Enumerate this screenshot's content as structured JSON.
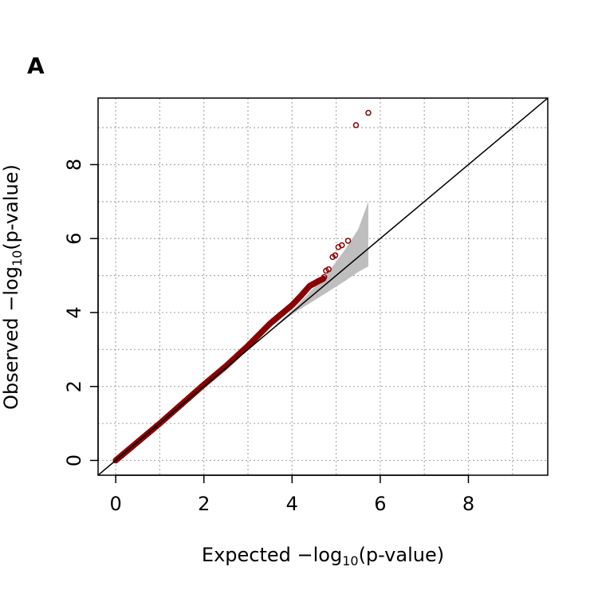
{
  "panel_label": "A",
  "colors": {
    "points": "#8b0000",
    "band": "#bebebe",
    "grid": "#a9a9a9",
    "axis": "#000000"
  },
  "chart_data": {
    "type": "scatter",
    "title": "",
    "xlabel": {
      "prefix": "Expected −log",
      "sub": "10",
      "suffix": "(p-value)"
    },
    "ylabel": {
      "prefix": "Observed −log",
      "sub": "10",
      "suffix": "(p-value)"
    },
    "xlim": [
      -0.4,
      9.8
    ],
    "ylim": [
      -0.4,
      9.8
    ],
    "xticks": [
      0,
      2,
      4,
      6,
      8
    ],
    "yticks": [
      0,
      2,
      4,
      6,
      8
    ],
    "grid": true,
    "reference_line": {
      "slope": 1,
      "intercept": 0
    },
    "confidence_band": {
      "upper": [
        [
          3.6,
          3.62
        ],
        [
          4.0,
          4.05
        ],
        [
          4.4,
          4.55
        ],
        [
          4.8,
          5.05
        ],
        [
          5.2,
          5.7
        ],
        [
          5.5,
          6.25
        ],
        [
          5.73,
          7.0
        ]
      ],
      "lower": [
        [
          3.6,
          3.58
        ],
        [
          4.0,
          3.95
        ],
        [
          4.4,
          4.25
        ],
        [
          4.8,
          4.55
        ],
        [
          5.2,
          4.85
        ],
        [
          5.5,
          5.1
        ],
        [
          5.73,
          5.25
        ]
      ]
    },
    "series": [
      {
        "dense_trend": [
          [
            0.0,
            0.0
          ],
          [
            1.0,
            1.0
          ],
          [
            2.0,
            2.05
          ],
          [
            2.5,
            2.55
          ],
          [
            3.0,
            3.1
          ],
          [
            3.5,
            3.7
          ],
          [
            3.8,
            4.0
          ],
          [
            4.0,
            4.2
          ],
          [
            4.2,
            4.45
          ],
          [
            4.4,
            4.72
          ],
          [
            4.6,
            4.85
          ],
          [
            4.72,
            4.92
          ]
        ],
        "outliers": [
          [
            4.73,
            4.96
          ],
          [
            4.77,
            5.13
          ],
          [
            4.83,
            5.17
          ],
          [
            4.92,
            5.5
          ],
          [
            4.98,
            5.55
          ],
          [
            5.05,
            5.77
          ],
          [
            5.13,
            5.82
          ],
          [
            5.27,
            5.94
          ],
          [
            5.45,
            9.07
          ],
          [
            5.73,
            9.4
          ]
        ]
      }
    ]
  }
}
